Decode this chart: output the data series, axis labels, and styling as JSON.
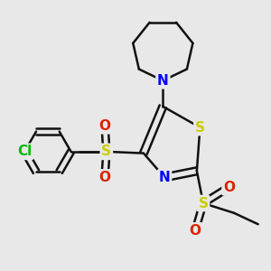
{
  "background_color": "#e8e8e8",
  "atom_colors": {
    "S": "#cccc00",
    "N": "#0000ff",
    "O": "#dd2200",
    "Cl": "#00bb00",
    "C": "#111111"
  },
  "bond_color": "#111111",
  "bond_width": 1.8,
  "figsize": [
    3.0,
    3.0
  ],
  "dpi": 100
}
